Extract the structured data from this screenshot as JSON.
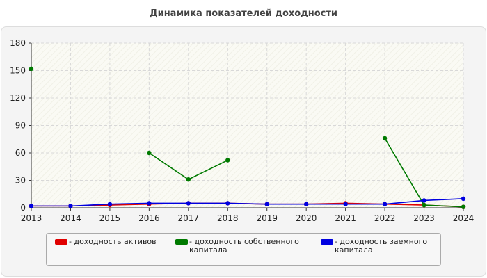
{
  "chart_data": {
    "type": "line",
    "title": "Динамика показателей доходности",
    "x": [
      2013,
      2014,
      2015,
      2016,
      2017,
      2018,
      2019,
      2020,
      2021,
      2022,
      2023,
      2024
    ],
    "ylim": [
      0,
      180
    ],
    "yticks": [
      0,
      30,
      60,
      90,
      120,
      150,
      180
    ],
    "grid": true,
    "legend_position": "bottom",
    "series": [
      {
        "name": "- доходность активов",
        "color": "#e00000",
        "values": [
          2,
          2,
          3,
          4,
          5,
          5,
          4,
          4,
          5,
          4,
          3,
          1
        ]
      },
      {
        "name": "- доходность собственного капитала",
        "color": "#007a00",
        "values": [
          152,
          null,
          null,
          60,
          31,
          52,
          null,
          null,
          null,
          76,
          3,
          1
        ]
      },
      {
        "name": "- доходность заемного капитала",
        "color": "#0000e0",
        "values": [
          2,
          2,
          4,
          5,
          5,
          5,
          4,
          4,
          4,
          4,
          8,
          10
        ]
      }
    ]
  }
}
